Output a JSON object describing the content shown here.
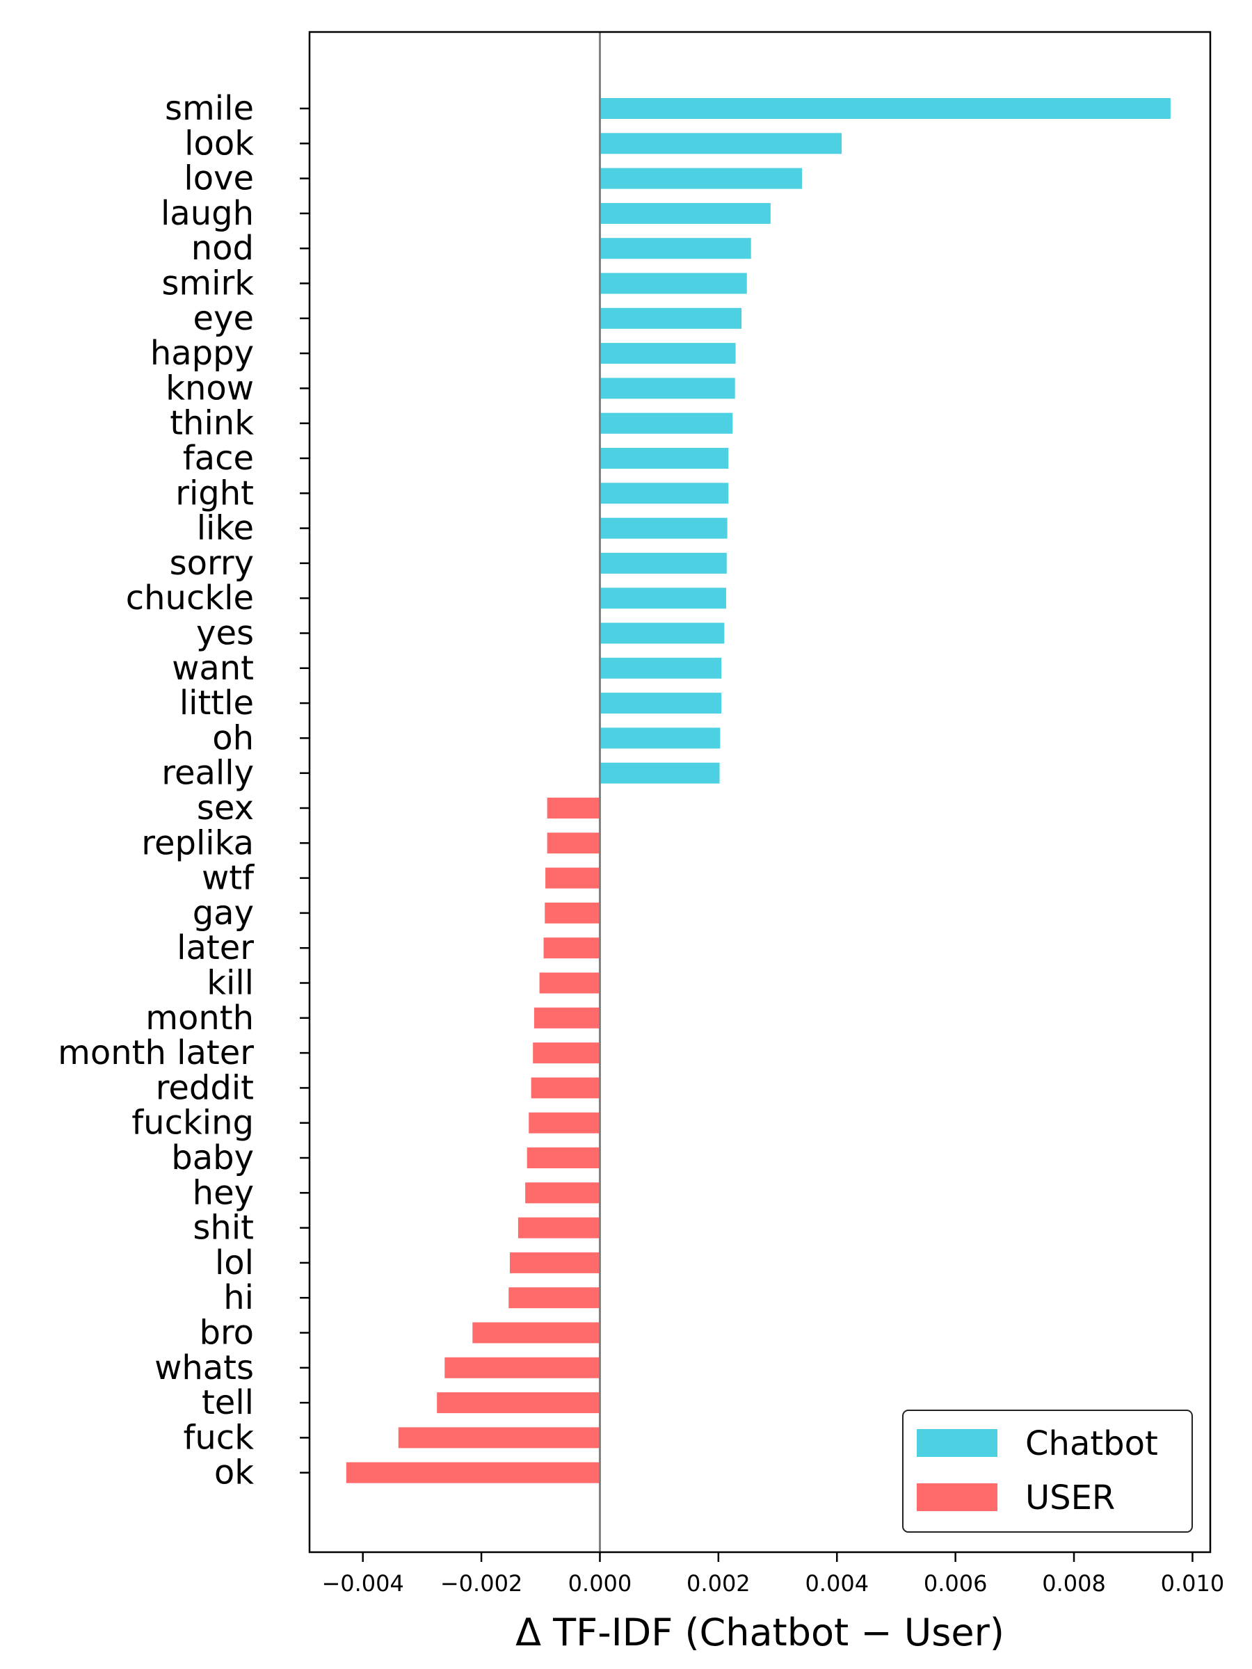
{
  "chart_data": {
    "type": "bar",
    "orientation": "horizontal",
    "xlabel": "Δ TF-IDF (Chatbot − User)",
    "xlim": [
      -0.0049,
      0.0103
    ],
    "xticks": [
      -0.004,
      -0.002,
      0.0,
      0.002,
      0.004,
      0.006,
      0.008,
      0.01
    ],
    "xtick_labels": [
      "−0.004",
      "−0.002",
      "0.000",
      "0.002",
      "0.004",
      "0.006",
      "0.008",
      "0.010"
    ],
    "categories": [
      "smile",
      "look",
      "love",
      "laugh",
      "nod",
      "smirk",
      "eye",
      "happy",
      "know",
      "think",
      "face",
      "right",
      "like",
      "sorry",
      "chuckle",
      "yes",
      "want",
      "little",
      "oh",
      "really",
      "sex",
      "replika",
      "wtf",
      "gay",
      "later",
      "kill",
      "month",
      "month later",
      "reddit",
      "fucking",
      "baby",
      "hey",
      "shit",
      "lol",
      "hi",
      "bro",
      "whats",
      "tell",
      "fuck",
      "ok"
    ],
    "values": [
      0.00963,
      0.00408,
      0.00341,
      0.00288,
      0.00255,
      0.00248,
      0.00239,
      0.00229,
      0.00228,
      0.00224,
      0.00217,
      0.00217,
      0.00215,
      0.00214,
      0.00213,
      0.0021,
      0.00205,
      0.00205,
      0.00203,
      0.00202,
      -0.00089,
      -0.00089,
      -0.00092,
      -0.00093,
      -0.00095,
      -0.00102,
      -0.00111,
      -0.00113,
      -0.00116,
      -0.0012,
      -0.00123,
      -0.00126,
      -0.00138,
      -0.00152,
      -0.00154,
      -0.00215,
      -0.00262,
      -0.00275,
      -0.0034,
      -0.00428
    ],
    "series": [
      {
        "name": "Chatbot",
        "color": "#4dd0e1"
      },
      {
        "name": "USER",
        "color": "#ff6b6b"
      }
    ],
    "legend": "bottom-right",
    "grid": false,
    "zero_line": true
  }
}
